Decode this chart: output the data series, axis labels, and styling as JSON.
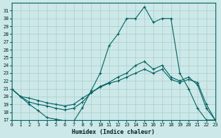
{
  "xlabel": "Humidex (Indice chaleur)",
  "bg_color": "#cce8e8",
  "line_color": "#006060",
  "grid_color": "#aacccc",
  "xlim": [
    0,
    23
  ],
  "ylim": [
    17,
    32
  ],
  "xtick_vals": [
    0,
    1,
    2,
    3,
    4,
    5,
    6,
    7,
    8,
    9,
    10,
    11,
    12,
    13,
    14,
    15,
    16,
    17,
    18,
    19,
    20,
    21,
    22,
    23
  ],
  "ytick_vals": [
    17,
    18,
    19,
    20,
    21,
    22,
    23,
    24,
    25,
    26,
    27,
    28,
    29,
    30,
    31
  ],
  "line1_x": [
    0,
    1,
    2,
    3,
    4,
    5,
    6,
    7,
    8,
    9,
    10,
    11,
    12,
    13,
    14,
    15,
    16,
    17,
    18,
    19,
    20,
    21,
    22,
    23
  ],
  "line1_y": [
    21,
    20,
    19,
    18.2,
    17.3,
    17.1,
    16.9,
    16.8,
    18.6,
    20.8,
    23.0,
    26.5,
    28.0,
    30.0,
    30.0,
    31.5,
    29.5,
    30.0,
    30.0,
    23.0,
    21.0,
    18.5,
    17.0,
    17.0
  ],
  "line2_x": [
    0,
    1,
    2,
    3,
    4,
    5,
    6,
    7,
    8,
    9,
    10,
    11,
    12,
    13,
    14,
    15,
    16,
    17,
    18,
    19,
    20,
    21,
    22,
    23
  ],
  "line2_y": [
    21,
    20,
    19.3,
    19.0,
    18.8,
    18.5,
    18.3,
    18.5,
    19.3,
    20.5,
    21.3,
    21.8,
    22.5,
    23.0,
    24.0,
    24.5,
    23.5,
    24.0,
    22.5,
    22.0,
    22.5,
    21.5,
    18.5,
    17.0
  ],
  "line3_x": [
    0,
    1,
    2,
    3,
    4,
    5,
    6,
    7,
    8,
    9,
    10,
    11,
    12,
    13,
    14,
    15,
    16,
    17,
    18,
    19,
    20,
    21,
    22,
    23
  ],
  "line3_y": [
    21,
    20,
    19.8,
    19.5,
    19.2,
    19.0,
    18.8,
    19.0,
    19.8,
    20.5,
    21.2,
    21.7,
    22.0,
    22.5,
    23.0,
    23.5,
    23.0,
    23.5,
    22.2,
    21.8,
    22.2,
    21.8,
    19.0,
    17.0
  ]
}
